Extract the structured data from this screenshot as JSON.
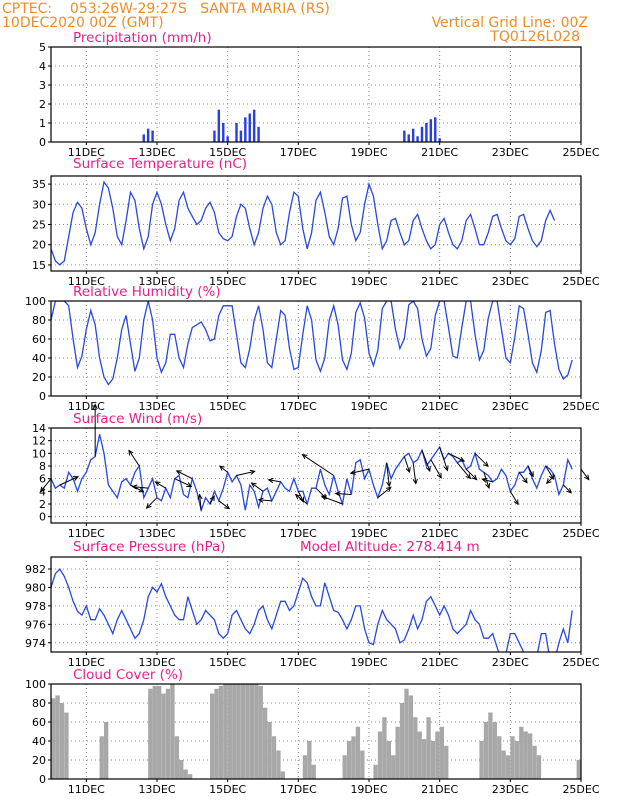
{
  "header": {
    "line1_left": "CPTEC:    053:26W-29:27S   SANTA MARIA (RS)",
    "line2_left": "10DEC2020 00Z (GMT)",
    "line1_right": "Vertical Grid Line: 00Z",
    "line2_right": "TQ0126L028"
  },
  "colors": {
    "header_text": "#f08c28",
    "panel_title": "#e8208c",
    "series_line": "#2848e0",
    "precip_bars": "#2840e0",
    "cloud_bars": "#a8a8a8",
    "wind_arrows": "#000000"
  },
  "time_axis": {
    "start": "10DEC2020 00Z",
    "end": "25DEC2020 00Z",
    "step_hours": 3,
    "tick_labels": [
      "11DEC",
      "13DEC",
      "15DEC",
      "17DEC",
      "19DEC",
      "21DEC",
      "23DEC",
      "25DEC"
    ]
  },
  "chart_data": [
    {
      "type": "bar",
      "title": "Precipitation (mm/h)",
      "ylim": [
        0,
        5
      ],
      "y_ticks": [
        "0",
        "1",
        "2",
        "3",
        "4",
        "5"
      ],
      "grid": true,
      "samples": [
        {
          "t": "12DEC 15Z",
          "v": 0.4
        },
        {
          "t": "12DEC 18Z",
          "v": 0.7
        },
        {
          "t": "12DEC 21Z",
          "v": 0.6
        },
        {
          "t": "14DEC 15Z",
          "v": 0.6
        },
        {
          "t": "14DEC 18Z",
          "v": 1.7
        },
        {
          "t": "14DEC 21Z",
          "v": 1.0
        },
        {
          "t": "15DEC 00Z",
          "v": 0.3
        },
        {
          "t": "15DEC 06Z",
          "v": 1.0
        },
        {
          "t": "15DEC 09Z",
          "v": 0.6
        },
        {
          "t": "15DEC 12Z",
          "v": 1.3
        },
        {
          "t": "15DEC 15Z",
          "v": 1.5
        },
        {
          "t": "15DEC 18Z",
          "v": 1.7
        },
        {
          "t": "15DEC 21Z",
          "v": 0.8
        },
        {
          "t": "20DEC 00Z",
          "v": 0.6
        },
        {
          "t": "20DEC 03Z",
          "v": 0.4
        },
        {
          "t": "20DEC 06Z",
          "v": 0.7
        },
        {
          "t": "20DEC 09Z",
          "v": 0.3
        },
        {
          "t": "20DEC 12Z",
          "v": 0.8
        },
        {
          "t": "20DEC 15Z",
          "v": 1.0
        },
        {
          "t": "20DEC 18Z",
          "v": 1.2
        },
        {
          "t": "20DEC 21Z",
          "v": 1.3
        },
        {
          "t": "21DEC 00Z",
          "v": 0.2
        }
      ]
    },
    {
      "type": "line",
      "title": "Surface Temperature (nC)",
      "ylim": [
        13.5,
        37
      ],
      "y_ticks": [
        "15",
        "20",
        "25",
        "30",
        "35"
      ],
      "grid": true,
      "values": [
        19,
        16,
        15,
        16,
        22,
        28,
        30.5,
        29,
        24,
        20,
        23,
        30,
        35.5,
        34,
        29,
        22,
        20,
        26,
        33,
        31,
        24,
        19,
        22,
        30,
        33,
        30,
        25,
        21,
        24,
        31,
        33,
        29,
        27,
        25,
        26,
        29,
        30.5,
        28,
        23,
        21.5,
        21,
        22,
        27,
        30,
        29,
        24,
        20,
        23,
        29,
        32,
        30,
        23,
        20,
        21,
        28,
        33,
        32,
        24,
        19,
        23,
        31,
        33,
        28,
        22,
        20,
        24,
        31.5,
        32,
        25,
        21,
        23,
        30,
        35,
        32,
        25,
        19,
        21,
        26,
        26.5,
        23,
        20,
        21,
        26,
        27.5,
        24,
        21,
        19,
        20,
        25,
        26.5,
        23,
        20,
        19,
        21,
        26,
        27.5,
        24,
        20,
        20,
        23,
        27,
        27.5,
        24,
        21,
        20,
        21.5,
        27,
        27.5,
        24,
        21,
        19.5,
        21,
        26,
        28.5,
        26
      ]
    },
    {
      "type": "line",
      "title": "Relative Humidity (%)",
      "ylim": [
        0,
        100
      ],
      "y_ticks": [
        "0",
        "20",
        "40",
        "60",
        "80",
        "100"
      ],
      "grid": true,
      "values": [
        80,
        100,
        100,
        100,
        95,
        60,
        30,
        42,
        70,
        90,
        75,
        40,
        20,
        12,
        18,
        40,
        70,
        85,
        55,
        26,
        40,
        80,
        100,
        80,
        40,
        25,
        35,
        65,
        65,
        40,
        30,
        55,
        72,
        75,
        78,
        70,
        58,
        60,
        85,
        95,
        95,
        95,
        65,
        35,
        30,
        50,
        80,
        95,
        70,
        35,
        30,
        60,
        90,
        85,
        50,
        28,
        30,
        65,
        95,
        80,
        38,
        26,
        40,
        80,
        95,
        75,
        38,
        28,
        45,
        88,
        98,
        82,
        45,
        32,
        48,
        92,
        100,
        100,
        70,
        50,
        60,
        96,
        100,
        92,
        60,
        42,
        50,
        85,
        100,
        100,
        72,
        42,
        40,
        72,
        100,
        100,
        65,
        38,
        48,
        82,
        100,
        100,
        70,
        40,
        35,
        62,
        95,
        92,
        65,
        35,
        25,
        48,
        88,
        90,
        55,
        28,
        18,
        22,
        38
      ]
    },
    {
      "type": "line",
      "title": "Surface Wind (m/s)",
      "ylim": [
        -1,
        14
      ],
      "y_ticks": [
        "0",
        "2",
        "4",
        "6",
        "8",
        "10",
        "12",
        "14"
      ],
      "grid": true,
      "values": [
        6,
        4.5,
        5,
        4.5,
        7,
        6,
        4,
        6,
        7,
        9,
        9.5,
        13,
        10,
        5,
        4,
        3,
        5.5,
        6,
        5,
        7,
        8,
        3,
        4.5,
        6,
        3,
        2.5,
        4.5,
        3,
        6,
        6.5,
        3.5,
        3,
        6,
        4,
        1,
        3,
        2,
        4,
        2.5,
        4.5,
        7,
        5.5,
        6.5,
        5,
        1,
        5,
        4,
        1.5,
        4,
        4.5,
        2.5,
        4,
        5.5,
        4.5,
        4,
        6,
        4,
        4,
        2,
        4.5,
        4.5,
        7.5,
        5,
        3.5,
        6.5,
        4,
        2,
        6,
        3.5,
        8.5,
        9,
        6,
        7.5,
        5,
        3,
        5,
        8.5,
        6,
        7.5,
        8.5,
        9.5,
        10,
        8.5,
        9,
        10.5,
        8,
        9,
        10,
        11,
        9,
        10,
        9.5,
        8.5,
        9,
        7.5,
        8,
        10,
        7.5,
        7,
        6.5,
        5.5,
        6,
        7.5,
        6.5,
        4,
        5,
        7,
        7,
        8,
        6,
        4.5,
        6.5,
        8,
        7.5,
        6.5,
        3.5,
        5,
        9,
        7.5
      ],
      "arrows": [
        {
          "t": "10DEC 00Z",
          "u": -2,
          "v": -2.5
        },
        {
          "t": "10DEC 06Z",
          "u": 3.5,
          "v": 1.6
        },
        {
          "t": "11DEC 06Z",
          "u": 0,
          "v": 10
        },
        {
          "t": "12DEC 06Z",
          "u": 2.5,
          "v": -1.3
        },
        {
          "t": "12DEC 12Z",
          "u": -2,
          "v": 3
        },
        {
          "t": "12DEC 18Z",
          "u": -3,
          "v": 0.3
        },
        {
          "t": "13DEC 00Z",
          "u": -2,
          "v": -2
        },
        {
          "t": "13DEC 06Z",
          "u": -2,
          "v": 1.2
        },
        {
          "t": "13DEC 12Z",
          "u": 3.2,
          "v": -1.5
        },
        {
          "t": "14DEC 00Z",
          "u": -3,
          "v": 1.5
        },
        {
          "t": "14DEC 06Z",
          "u": -0.3,
          "v": 3
        },
        {
          "t": "14DEC 12Z",
          "u": 0.8,
          "v": 1.5
        },
        {
          "t": "14DEC 18Z",
          "u": 2,
          "v": -1.5
        },
        {
          "t": "15DEC 00Z",
          "u": -1.5,
          "v": 1.2
        },
        {
          "t": "15DEC 06Z",
          "u": 3.5,
          "v": 0.8
        },
        {
          "t": "16DEC 00Z",
          "u": -2.2,
          "v": 1.6
        },
        {
          "t": "16DEC 06Z",
          "u": -2.5,
          "v": 0.2
        },
        {
          "t": "16DEC 12Z",
          "u": -2.3,
          "v": 0.4
        },
        {
          "t": "17DEC 00Z",
          "u": 1,
          "v": -2
        },
        {
          "t": "17DEC 06Z",
          "u": -2.2,
          "v": 1.8
        },
        {
          "t": "17DEC 12Z",
          "u": 2,
          "v": -2
        },
        {
          "t": "18DEC 00Z",
          "u": -6,
          "v": 4
        },
        {
          "t": "18DEC 06Z",
          "u": -4,
          "v": 1.5
        },
        {
          "t": "18DEC 12Z",
          "u": -3,
          "v": 0.2
        },
        {
          "t": "19DEC 00Z",
          "u": -3.5,
          "v": -0.8
        },
        {
          "t": "19DEC 06Z",
          "u": 2.5,
          "v": 2
        },
        {
          "t": "19DEC 12Z",
          "u": 0.5,
          "v": -4.5
        },
        {
          "t": "20DEC 00Z",
          "u": 1,
          "v": -3
        },
        {
          "t": "20DEC 06Z",
          "u": 0.5,
          "v": -4
        },
        {
          "t": "20DEC 12Z",
          "u": 1.5,
          "v": -4
        },
        {
          "t": "20DEC 18Z",
          "u": 2,
          "v": -3.5
        },
        {
          "t": "21DEC 00Z",
          "u": 1.5,
          "v": -4.5
        },
        {
          "t": "21DEC 06Z",
          "u": 3,
          "v": -1.5
        },
        {
          "t": "21DEC 12Z",
          "u": 2.5,
          "v": -3
        },
        {
          "t": "21DEC 18Z",
          "u": 2,
          "v": -2
        },
        {
          "t": "22DEC 00Z",
          "u": 2.5,
          "v": -2.5
        },
        {
          "t": "22DEC 06Z",
          "u": 1,
          "v": -3
        },
        {
          "t": "22DEC 12Z",
          "u": -2,
          "v": 0.5
        },
        {
          "t": "23DEC 00Z",
          "u": 1.5,
          "v": -2.5
        },
        {
          "t": "23DEC 06Z",
          "u": 1.5,
          "v": -2
        },
        {
          "t": "23DEC 12Z",
          "u": 1,
          "v": -2
        },
        {
          "t": "24DEC 00Z",
          "u": 1.5,
          "v": -2.5
        },
        {
          "t": "24DEC 06Z",
          "u": -1.5,
          "v": -1.5
        },
        {
          "t": "24DEC 12Z",
          "u": 1.5,
          "v": -1.5
        },
        {
          "t": "25DEC 00Z",
          "u": 1.5,
          "v": -2
        }
      ]
    },
    {
      "type": "line",
      "title": "Surface Pressure (hPa)",
      "subtitle": "Model Altitude: 278.414 m",
      "ylim": [
        973,
        983.3
      ],
      "y_ticks": [
        "974",
        "976",
        "978",
        "980",
        "982"
      ],
      "grid": true,
      "values": [
        980,
        981.5,
        982,
        981.2,
        980,
        978.5,
        977.4,
        977,
        978,
        976.5,
        976.5,
        977.7,
        977,
        976,
        975,
        976.5,
        977.5,
        976.5,
        975.5,
        974.5,
        975,
        976.5,
        979,
        980,
        979.5,
        980.4,
        979,
        978,
        977,
        976.5,
        976.5,
        979,
        977.5,
        976,
        976.5,
        977.5,
        977,
        976.5,
        975,
        974.5,
        975,
        977,
        977.5,
        976.5,
        975.5,
        975,
        976,
        977.5,
        978,
        976.5,
        975.5,
        977,
        978.5,
        978.5,
        977.5,
        978,
        979.5,
        981,
        980.5,
        979,
        978,
        978,
        980.5,
        979,
        977.5,
        977.3,
        976.5,
        975.5,
        976.5,
        978,
        978,
        975.5,
        974,
        973.8,
        976,
        977.5,
        976.5,
        976,
        975.5,
        974,
        974.3,
        975.5,
        977,
        975.5,
        976.5,
        978.5,
        979,
        978,
        977,
        978,
        977,
        975.5,
        975,
        975.5,
        976,
        977.5,
        976.5,
        976,
        974.5,
        974.5,
        975,
        973.5,
        972,
        972.8,
        975,
        975,
        974,
        973,
        972.5,
        972,
        972.5,
        975,
        975,
        972,
        972,
        974,
        975.5,
        974,
        977.5
      ]
    },
    {
      "type": "bar",
      "title": "Cloud Cover (%)",
      "ylim": [
        0,
        100
      ],
      "y_ticks": [
        "0",
        "20",
        "40",
        "60",
        "80",
        "100"
      ],
      "grid": true,
      "values": [
        85,
        88,
        80,
        70,
        0,
        0,
        0,
        0,
        0,
        0,
        0,
        45,
        60,
        0,
        0,
        0,
        0,
        0,
        0,
        0,
        0,
        0,
        95,
        98,
        98,
        90,
        95,
        100,
        45,
        20,
        10,
        5,
        0,
        0,
        0,
        0,
        90,
        95,
        98,
        100,
        100,
        100,
        100,
        100,
        100,
        100,
        100,
        98,
        75,
        60,
        45,
        30,
        8,
        0,
        0,
        0,
        0,
        25,
        40,
        15,
        0,
        0,
        0,
        0,
        0,
        0,
        25,
        40,
        45,
        55,
        30,
        0,
        0,
        15,
        50,
        65,
        40,
        25,
        55,
        80,
        95,
        88,
        65,
        50,
        42,
        65,
        40,
        50,
        55,
        35,
        0,
        0,
        0,
        0,
        0,
        0,
        0,
        40,
        60,
        70,
        60,
        45,
        30,
        25,
        45,
        40,
        55,
        50,
        48,
        35,
        25,
        0,
        0,
        0,
        0,
        0,
        0,
        0,
        0,
        20
      ]
    }
  ]
}
